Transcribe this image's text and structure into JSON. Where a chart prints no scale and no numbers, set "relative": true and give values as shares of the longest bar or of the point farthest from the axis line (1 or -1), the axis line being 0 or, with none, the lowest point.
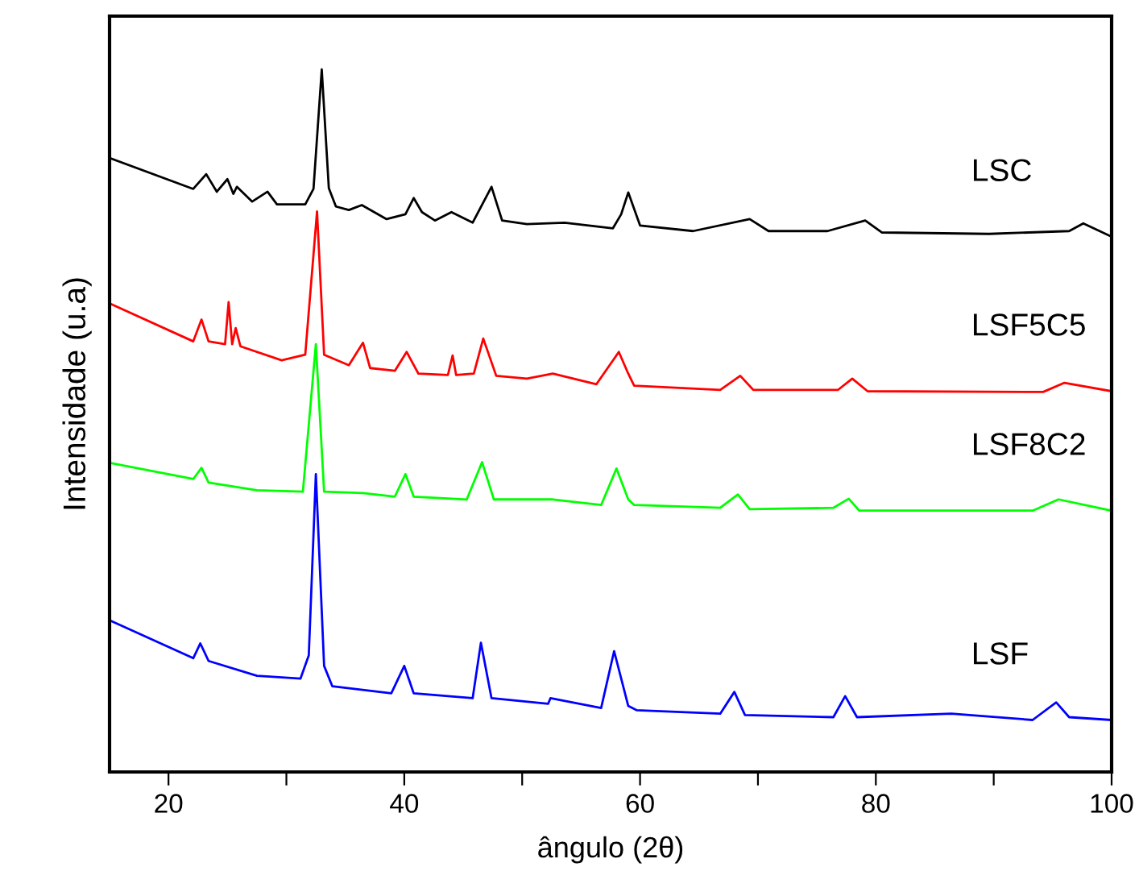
{
  "chart_data": {
    "type": "line",
    "relative": true,
    "xlabel": "ângulo (2θ)",
    "ylabel": "Intensidade (u.a)",
    "xlim": [
      15,
      100
    ],
    "xticks": [
      20,
      {
        "value": 30,
        "label": null
      },
      40,
      {
        "value": 50,
        "label": null
      },
      60,
      {
        "value": 70,
        "label": null
      },
      80,
      {
        "value": 90,
        "label": null
      },
      100
    ],
    "tick_labels": "x",
    "grid": false,
    "legend": false,
    "marker": "none",
    "line_style": "solid",
    "series": [
      {
        "name": "LSC",
        "color": "#000000",
        "x": [
          15,
          22.1,
          23.2,
          24.1,
          25.0,
          25.5,
          25.8,
          27.1,
          28.4,
          29.2,
          31.6,
          32.3,
          33.0,
          33.6,
          34.2,
          35.3,
          36.4,
          38.5,
          40.1,
          40.8,
          41.5,
          42.6,
          44.0,
          45.8,
          47.4,
          48.3,
          50.4,
          53.6,
          57.7,
          58.4,
          59.0,
          60.0,
          64.5,
          69.3,
          70.9,
          75.9,
          79.1,
          80.5,
          89.6,
          96.4,
          97.6,
          100
        ],
        "values": [
          0.874,
          0.83,
          0.851,
          0.826,
          0.844,
          0.823,
          0.833,
          0.812,
          0.826,
          0.808,
          0.808,
          0.83,
          1.0,
          0.831,
          0.805,
          0.8,
          0.807,
          0.787,
          0.794,
          0.817,
          0.797,
          0.785,
          0.797,
          0.782,
          0.833,
          0.785,
          0.78,
          0.782,
          0.774,
          0.794,
          0.825,
          0.778,
          0.77,
          0.787,
          0.77,
          0.77,
          0.785,
          0.768,
          0.766,
          0.77,
          0.781,
          0.762
        ]
      },
      {
        "name": "LSF5C5",
        "color": "#ff0000",
        "x": [
          15,
          22.1,
          22.8,
          23.4,
          24.8,
          25.1,
          25.4,
          25.7,
          26.1,
          29.6,
          31.6,
          32.6,
          33.2,
          35.3,
          36.5,
          37.1,
          39.2,
          40.2,
          41.2,
          43.7,
          44.1,
          44.4,
          45.9,
          46.7,
          47.8,
          50.4,
          52.6,
          56.3,
          58.2,
          59.0,
          59.5,
          66.8,
          68.5,
          69.6,
          76.8,
          78.0,
          79.3,
          94.2,
          96.0,
          100
        ],
        "values": [
          0.667,
          0.613,
          0.644,
          0.613,
          0.609,
          0.669,
          0.609,
          0.632,
          0.606,
          0.586,
          0.594,
          0.798,
          0.594,
          0.579,
          0.611,
          0.575,
          0.571,
          0.598,
          0.567,
          0.565,
          0.593,
          0.565,
          0.567,
          0.617,
          0.564,
          0.56,
          0.567,
          0.552,
          0.598,
          0.567,
          0.55,
          0.544,
          0.564,
          0.544,
          0.544,
          0.56,
          0.542,
          0.541,
          0.554,
          0.542
        ]
      },
      {
        "name": "LSF8C2",
        "color": "#00ff00",
        "x": [
          15,
          22.1,
          22.8,
          23.4,
          27.5,
          31.4,
          32.5,
          33.2,
          36.5,
          39.2,
          40.1,
          40.8,
          45.3,
          46.6,
          47.6,
          52.6,
          56.7,
          58.0,
          59.0,
          59.5,
          66.8,
          68.3,
          69.3,
          76.4,
          77.7,
          78.6,
          93.3,
          95.5,
          100
        ],
        "values": [
          0.44,
          0.417,
          0.433,
          0.412,
          0.401,
          0.399,
          0.609,
          0.399,
          0.397,
          0.392,
          0.424,
          0.392,
          0.388,
          0.441,
          0.388,
          0.388,
          0.38,
          0.432,
          0.388,
          0.38,
          0.376,
          0.395,
          0.374,
          0.376,
          0.389,
          0.372,
          0.372,
          0.388,
          0.372
        ]
      },
      {
        "name": "LSF",
        "color": "#0000ff",
        "x": [
          15,
          22.1,
          22.7,
          23.4,
          27.5,
          31.2,
          31.9,
          32.5,
          33.2,
          33.9,
          38.9,
          40.0,
          40.8,
          45.8,
          46.5,
          47.4,
          52.2,
          52.4,
          56.7,
          57.8,
          59.0,
          59.7,
          66.8,
          68.0,
          68.9,
          76.4,
          77.4,
          78.4,
          86.4,
          93.3,
          95.3,
          96.4,
          100
        ],
        "values": [
          0.216,
          0.162,
          0.183,
          0.158,
          0.137,
          0.133,
          0.166,
          0.424,
          0.151,
          0.122,
          0.112,
          0.151,
          0.112,
          0.105,
          0.184,
          0.105,
          0.097,
          0.105,
          0.091,
          0.172,
          0.094,
          0.088,
          0.083,
          0.114,
          0.081,
          0.078,
          0.108,
          0.078,
          0.083,
          0.074,
          0.099,
          0.078,
          0.074
        ]
      }
    ]
  }
}
